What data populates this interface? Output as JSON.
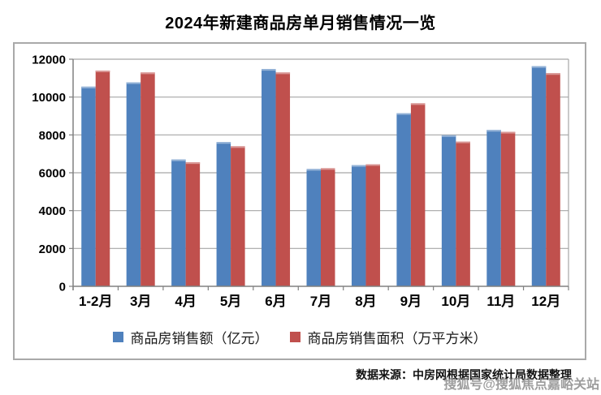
{
  "page": {
    "title": "2024年新建商品房单月销售情况一览",
    "source_note": "数据来源：中房网根据国家统计局数据整理",
    "watermark": "搜狐号@搜狐焦点嘉峪关站"
  },
  "colors": {
    "series_amount": "#4F81BD",
    "series_amount_highlight": "#95B3D7",
    "series_area": "#C0504D",
    "series_area_highlight": "#D99694",
    "gridline": "#a6a6a6",
    "axis": "#808080",
    "chart_border": "#a9a9a9",
    "tick_text": "#000000"
  },
  "chart_data": {
    "type": "bar",
    "title": "2024年新建商品房单月销售情况一览",
    "categories": [
      "1-2月",
      "3月",
      "4月",
      "5月",
      "6月",
      "7月",
      "8月",
      "9月",
      "10月",
      "11月",
      "12月"
    ],
    "series": [
      {
        "name": "商品房销售额（亿元）",
        "color": "#4F81BD",
        "values": [
          10550,
          10780,
          6700,
          7620,
          11480,
          6200,
          6400,
          9150,
          7980,
          8260,
          11630
        ]
      },
      {
        "name": "商品房销售面积（万平方米）",
        "color": "#C0504D",
        "values": [
          11400,
          11300,
          6550,
          7400,
          11300,
          6240,
          6450,
          9670,
          7650,
          8160,
          11260
        ]
      }
    ],
    "xlabel": "",
    "ylabel": "",
    "ylim": [
      0,
      12000
    ],
    "ytick_step": 2000,
    "yticks": [
      "0",
      "2000",
      "4000",
      "6000",
      "8000",
      "10000",
      "12000"
    ],
    "grid": true,
    "legend_position": "bottom"
  }
}
